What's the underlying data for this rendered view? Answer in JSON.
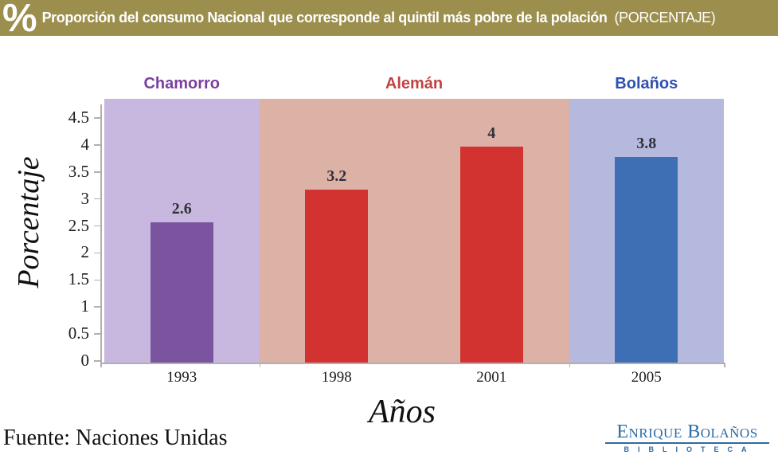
{
  "header": {
    "percent_symbol": "%",
    "title": "Proporción del consumo Nacional que corresponde al quintil más pobre de la polación",
    "subtitle": "(PORCENTAJE)",
    "bg_color": "#9c8f4e"
  },
  "chart_data": {
    "type": "bar",
    "categories": [
      "1993",
      "1998",
      "2001",
      "2005"
    ],
    "values": [
      2.6,
      3.2,
      4,
      3.8
    ],
    "value_labels": [
      "2.6",
      "3.2",
      "4",
      "3.8"
    ],
    "xlabel": "Años",
    "ylabel": "Porcentaje",
    "ylim": [
      0,
      4.5
    ],
    "ytick_step": 0.5,
    "yticks": [
      "4.5",
      "4",
      "3.5",
      "3",
      "2.5",
      "2",
      "1.5",
      "1",
      "0.5",
      "0"
    ],
    "grid": false,
    "legend": "none",
    "bar_colors": [
      "#7b54a0",
      "#d23230",
      "#d23230",
      "#3e6fb5"
    ],
    "regions": [
      {
        "label": "Chamorro",
        "color": "#c8b7de",
        "label_color": "#7b3f9e",
        "span": [
          0,
          1
        ]
      },
      {
        "label": "Alemán",
        "color": "#ddb2a6",
        "label_color": "#c04343",
        "span": [
          1,
          3
        ]
      },
      {
        "label": "Bolaños",
        "color": "#b6b9de",
        "label_color": "#3050b0",
        "span": [
          3,
          4
        ]
      }
    ]
  },
  "footer": {
    "source": "Fuente: Naciones Unidas",
    "logo": {
      "line1": "Enrique Bolaños",
      "line2": "BIBLIOTECA",
      "color": "#2d6ba3"
    }
  }
}
